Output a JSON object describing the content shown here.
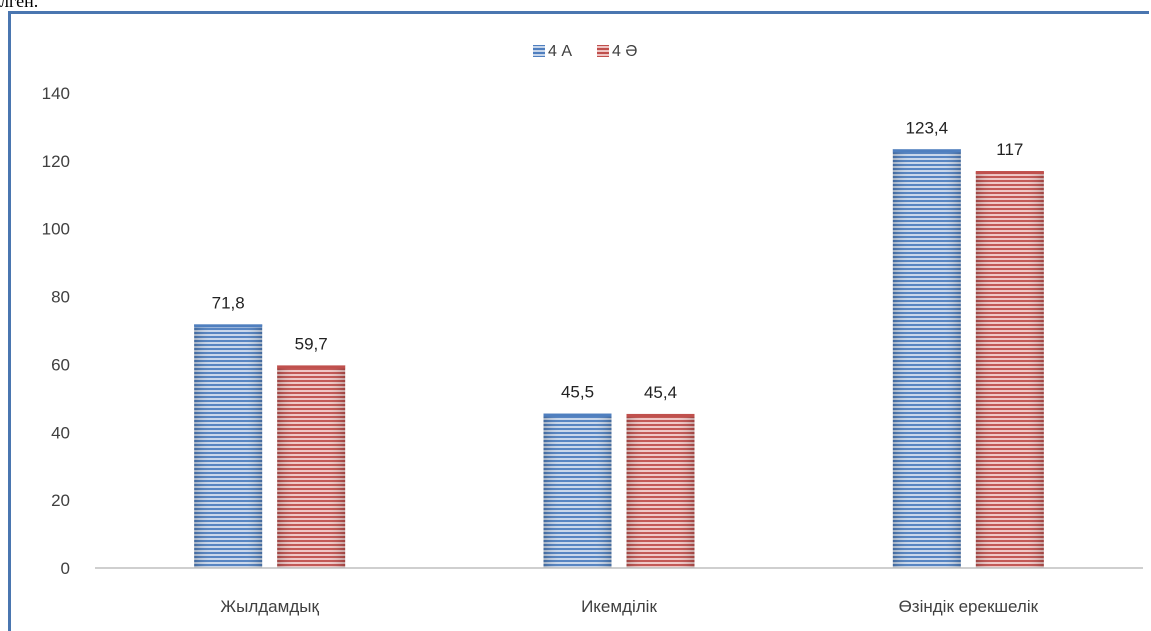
{
  "header_fragment": "лген.",
  "chart_data": {
    "type": "bar",
    "title": "",
    "xlabel": "",
    "ylabel": "",
    "categories": [
      "Жылдамдық",
      "Икемділік",
      "Өзіндік ерекшелік"
    ],
    "series": [
      {
        "name": "4 А",
        "values": [
          71.8,
          45.5,
          123.4
        ],
        "labels": [
          "71,8",
          "45,5",
          "123,4"
        ],
        "color": "#4f7fbf"
      },
      {
        "name": "4 Ә",
        "values": [
          59.7,
          45.4,
          117
        ],
        "labels": [
          "59,7",
          "45,4",
          "117"
        ],
        "color": "#c0504d"
      }
    ],
    "ylim": [
      0,
      140
    ],
    "yticks": [
      0,
      20,
      40,
      60,
      80,
      100,
      120,
      140
    ],
    "grid": false,
    "legend": "top-center"
  }
}
